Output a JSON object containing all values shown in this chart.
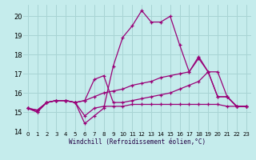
{
  "xlabel": "Windchill (Refroidissement éolien,°C)",
  "bg_color": "#c5ecec",
  "grid_color": "#a8d4d4",
  "line_color": "#990077",
  "xlim": [
    -0.5,
    23.5
  ],
  "ylim": [
    14,
    20.6
  ],
  "yticks": [
    14,
    15,
    16,
    17,
    18,
    19,
    20
  ],
  "xticks": [
    0,
    1,
    2,
    3,
    4,
    5,
    6,
    7,
    8,
    9,
    10,
    11,
    12,
    13,
    14,
    15,
    16,
    17,
    18,
    19,
    20,
    21,
    22,
    23
  ],
  "lines": [
    {
      "x": [
        0,
        1,
        2,
        3,
        4,
        5,
        6,
        7,
        8,
        9,
        10,
        11,
        12,
        13,
        14,
        15,
        16,
        17,
        18,
        19,
        20,
        21,
        22,
        23
      ],
      "y": [
        15.2,
        15.0,
        15.5,
        15.6,
        15.6,
        15.5,
        14.4,
        14.8,
        15.2,
        17.4,
        18.9,
        19.5,
        20.3,
        19.7,
        19.7,
        20.0,
        18.5,
        17.1,
        17.9,
        17.1,
        15.8,
        15.8,
        15.3,
        15.3
      ]
    },
    {
      "x": [
        0,
        1,
        2,
        3,
        4,
        5,
        6,
        7,
        8,
        9,
        10,
        11,
        12,
        13,
        14,
        15,
        16,
        17,
        18,
        19,
        20,
        21,
        22,
        23
      ],
      "y": [
        15.2,
        15.1,
        15.5,
        15.6,
        15.6,
        15.5,
        15.6,
        15.8,
        16.0,
        16.1,
        16.2,
        16.4,
        16.5,
        16.6,
        16.8,
        16.9,
        17.0,
        17.1,
        17.8,
        17.1,
        15.8,
        15.8,
        15.3,
        15.3
      ]
    },
    {
      "x": [
        0,
        1,
        2,
        3,
        4,
        5,
        6,
        7,
        8,
        9,
        10,
        11,
        12,
        13,
        14,
        15,
        16,
        17,
        18,
        19,
        20,
        21,
        22,
        23
      ],
      "y": [
        15.2,
        15.1,
        15.5,
        15.6,
        15.6,
        15.5,
        15.6,
        16.7,
        16.9,
        15.5,
        15.5,
        15.6,
        15.7,
        15.8,
        15.9,
        16.0,
        16.2,
        16.4,
        16.6,
        17.1,
        17.1,
        15.8,
        15.3,
        15.3
      ]
    },
    {
      "x": [
        0,
        1,
        2,
        3,
        4,
        5,
        6,
        7,
        8,
        9,
        10,
        11,
        12,
        13,
        14,
        15,
        16,
        17,
        18,
        19,
        20,
        21,
        22,
        23
      ],
      "y": [
        15.2,
        15.0,
        15.5,
        15.6,
        15.6,
        15.5,
        14.8,
        15.2,
        15.3,
        15.3,
        15.3,
        15.4,
        15.4,
        15.4,
        15.4,
        15.4,
        15.4,
        15.4,
        15.4,
        15.4,
        15.4,
        15.3,
        15.3,
        15.3
      ]
    }
  ]
}
